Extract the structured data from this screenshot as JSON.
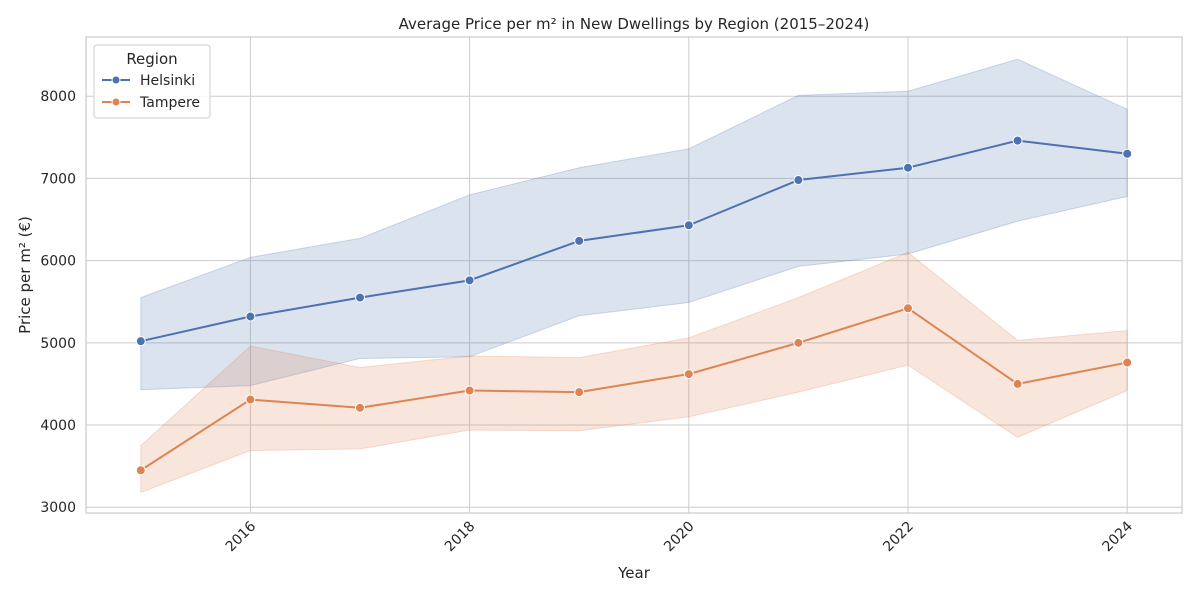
{
  "chart_data": {
    "type": "line",
    "title": "Average Price per m² in New Dwellings by Region (2015–2024)",
    "xlabel": "Year",
    "ylabel": "Price per m² (€)",
    "xlim": [
      2014.5,
      2024.5
    ],
    "ylim": [
      2930,
      8720
    ],
    "xticks": [
      2016,
      2018,
      2020,
      2022,
      2024
    ],
    "yticks": [
      3000,
      4000,
      5000,
      6000,
      7000,
      8000
    ],
    "grid": true,
    "legend": {
      "title": "Region",
      "placement": "top-left"
    },
    "x": [
      2015,
      2016,
      2017,
      2018,
      2019,
      2020,
      2021,
      2022,
      2023,
      2024
    ],
    "series": [
      {
        "name": "Helsinki",
        "color": "#4c72b0",
        "values": [
          5020,
          5320,
          5550,
          5760,
          6240,
          6430,
          6980,
          7130,
          7460,
          7300
        ],
        "ci_upper": [
          5550,
          6040,
          6270,
          6800,
          7130,
          7360,
          8010,
          8060,
          8450,
          7840
        ],
        "ci_lower": [
          4430,
          4480,
          4810,
          4830,
          5330,
          5490,
          5930,
          6080,
          6480,
          6780
        ]
      },
      {
        "name": "Tampere",
        "color": "#dd8452",
        "values": [
          3450,
          4310,
          4210,
          4420,
          4400,
          4620,
          5000,
          5420,
          4500,
          4760
        ],
        "ci_upper": [
          3750,
          4960,
          4700,
          4840,
          4820,
          5060,
          5550,
          6100,
          5030,
          5150
        ],
        "ci_lower": [
          3180,
          3690,
          3710,
          3940,
          3930,
          4100,
          4400,
          4730,
          3850,
          4420
        ]
      }
    ]
  }
}
